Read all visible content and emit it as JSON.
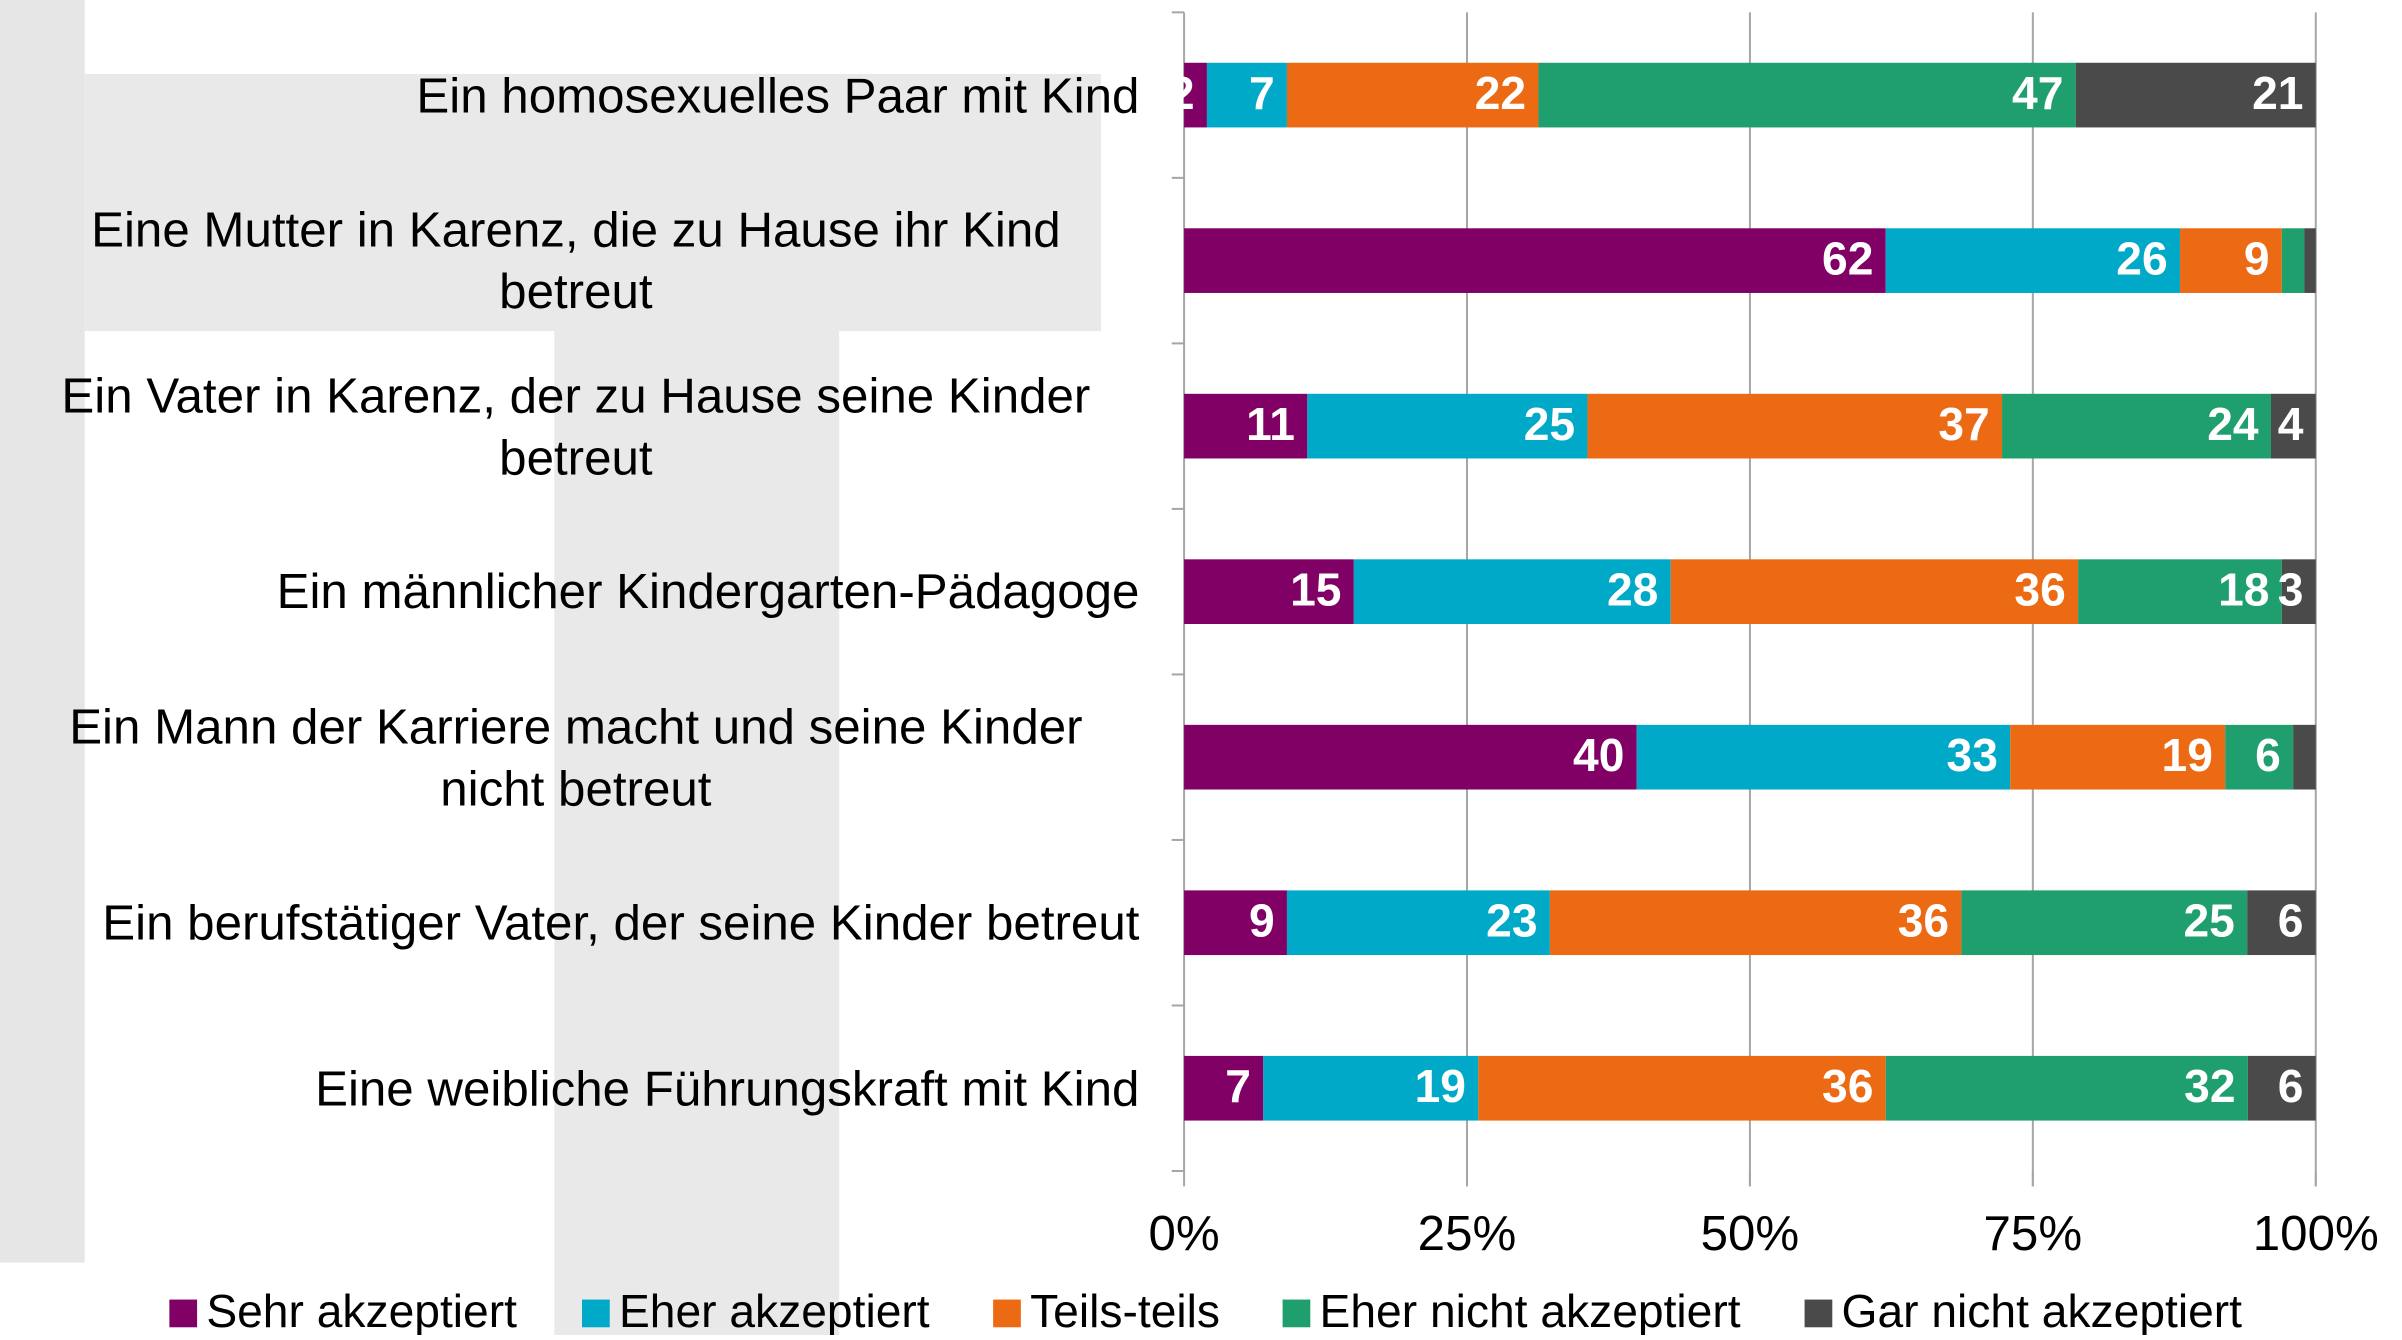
{
  "chart_data": {
    "type": "stacked_bar_horizontal_percent",
    "categories": [
      "Ein homosexuelles Paar mit Kind",
      "Eine Mutter in Karenz, die zu Hause ihr Kind betreut",
      "Ein Vater in Karenz, der zu Hause seine Kinder betreut",
      "Ein männlicher Kindergarten-Pädagoge",
      "Ein Mann der Karriere macht und seine Kinder nicht betreut",
      "Ein berufstätiger Vater, der seine Kinder betreut",
      "Eine weibliche Führungskraft mit Kind"
    ],
    "series": [
      {
        "name": "Sehr akzeptiert",
        "color": "#800066",
        "values": [
          2,
          62,
          11,
          15,
          40,
          9,
          7
        ],
        "value_labels": [
          "2",
          "62",
          "11",
          "15",
          "40",
          "9",
          "7"
        ]
      },
      {
        "name": "Eher akzeptiert",
        "color": "#00a9c8",
        "values": [
          7,
          26,
          25,
          28,
          33,
          23,
          19
        ],
        "value_labels": [
          "7",
          "26",
          "25",
          "28",
          "33",
          "23",
          "19"
        ]
      },
      {
        "name": "Teils-teils",
        "color": "#ec6a13",
        "values": [
          22,
          9,
          37,
          36,
          19,
          36,
          36
        ],
        "value_labels": [
          "22",
          "9",
          "37",
          "36",
          "19",
          "36",
          "36"
        ]
      },
      {
        "name": "Eher nicht akzeptiert",
        "color": "#1f9e6e",
        "values": [
          47,
          2,
          24,
          18,
          6,
          25,
          32
        ],
        "value_labels": [
          "47",
          null,
          "24",
          "18",
          "6",
          "25",
          "32"
        ]
      },
      {
        "name": "Gar nicht akzeptiert",
        "color": "#4a4a4a",
        "values": [
          21,
          1,
          4,
          3,
          2,
          6,
          6
        ],
        "value_labels": [
          "21",
          null,
          "4",
          "3",
          null,
          "6",
          "6"
        ]
      }
    ],
    "xlim": [
      0,
      100
    ],
    "xticks": [
      {
        "value": 0,
        "label": "0%"
      },
      {
        "value": 25,
        "label": "25%"
      },
      {
        "value": 50,
        "label": "50%"
      },
      {
        "value": 75,
        "label": "75%"
      },
      {
        "value": 100,
        "label": "100%"
      }
    ],
    "grid": true,
    "legend": "bottom"
  }
}
